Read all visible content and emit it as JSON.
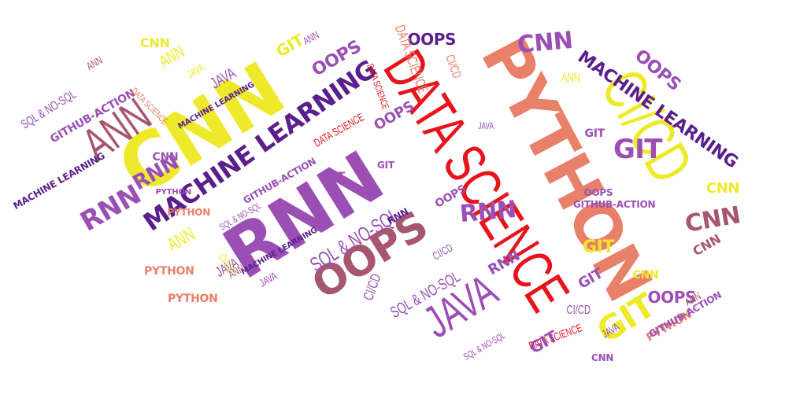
{
  "palette": {
    "yellow": "#eeea2b",
    "purple": "#9b4fb5",
    "dark_purple": "#5a1f8c",
    "red": "#e8131b",
    "salmon": "#e9806a",
    "mauve": "#a6576f"
  },
  "words": [
    {
      "text": "DATA SCIENCE",
      "color": "red",
      "style": "narrow"
    },
    {
      "text": "CNN",
      "color": "yellow",
      "style": "bold"
    },
    {
      "text": "RNN",
      "color": "purple",
      "style": "bold"
    },
    {
      "text": "PYTHON",
      "color": "salmon",
      "style": "bold"
    },
    {
      "text": "CI/CD",
      "color": "yellow",
      "style": "narrow"
    },
    {
      "text": "ANN",
      "color": "mauve",
      "style": "narrow"
    },
    {
      "text": "JAVA",
      "color": "purple",
      "style": "narrow"
    },
    {
      "text": "MACHINE LEARNING",
      "color": "dark_purple",
      "style": "bold"
    },
    {
      "text": "MACHINE LEARNING",
      "color": "dark_purple",
      "style": "bold"
    },
    {
      "text": "OOPS",
      "color": "mauve",
      "style": "bold"
    },
    {
      "text": "SQL & NO-SQL",
      "color": "purple",
      "style": "narrow"
    },
    {
      "text": "GIT",
      "color": "yellow",
      "style": "bold"
    },
    {
      "text": "GIT",
      "color": "purple",
      "style": "bold"
    },
    {
      "text": "CNN",
      "color": "purple",
      "style": "bold"
    },
    {
      "text": "CNN",
      "color": "mauve",
      "style": "bold"
    },
    {
      "text": "OOPS",
      "color": "dark_purple",
      "style": "bold"
    },
    {
      "text": "OOPS",
      "color": "purple",
      "style": "bold"
    },
    {
      "text": "RNN",
      "color": "purple",
      "style": "bold"
    },
    {
      "text": "RNN",
      "color": "purple",
      "style": "bold"
    },
    {
      "text": "ANN",
      "color": "yellow",
      "style": "narrow"
    },
    {
      "text": "ANN",
      "color": "yellow",
      "style": "narrow"
    },
    {
      "text": "GITHUB-ACTION",
      "color": "purple",
      "style": "bold"
    },
    {
      "text": "DATA SCIENCE",
      "color": "salmon",
      "style": "narrow"
    },
    {
      "text": "CI/CD",
      "color": "purple",
      "style": "narrow"
    },
    {
      "text": "CI/CD",
      "color": "salmon",
      "style": "narrow"
    },
    {
      "text": "JAVA",
      "color": "purple",
      "style": "narrow"
    },
    {
      "text": "PYTHON",
      "color": "salmon",
      "style": "bold"
    },
    {
      "text": "PYTHON",
      "color": "purple",
      "style": "bold"
    },
    {
      "text": "GIT",
      "color": "yellow",
      "style": "bold"
    },
    {
      "text": "CNN",
      "color": "yellow",
      "style": "bold"
    },
    {
      "text": "ANN",
      "color": "purple",
      "style": "narrow"
    },
    {
      "text": "SQL & NO-SQL",
      "color": "purple",
      "style": "narrow"
    },
    {
      "text": "MACHINE LEARNING",
      "color": "dark_purple",
      "style": "bold"
    },
    {
      "text": "GITHUB-ACTION",
      "color": "purple",
      "style": "bold"
    },
    {
      "text": "JAVA",
      "color": "yellow",
      "style": "narrow"
    },
    {
      "text": "RNN",
      "color": "purple",
      "style": "bold"
    },
    {
      "text": "OOPS",
      "color": "purple",
      "style": "bold"
    },
    {
      "text": "GIT",
      "color": "purple",
      "style": "bold"
    },
    {
      "text": "CNN",
      "color": "yellow",
      "style": "bold"
    },
    {
      "text": "ANN",
      "color": "mauve",
      "style": "narrow"
    },
    {
      "text": "DATA SCIENCE",
      "color": "salmon",
      "style": "narrow"
    },
    {
      "text": "DATA SCIENCE",
      "color": "red",
      "style": "narrow"
    },
    {
      "text": "RNN",
      "color": "dark_purple",
      "style": "bold"
    },
    {
      "text": "OOPS",
      "color": "purple",
      "style": "bold"
    },
    {
      "text": "JAVA",
      "color": "purple",
      "style": "narrow"
    },
    {
      "text": "CI/CD",
      "color": "yellow",
      "style": "narrow"
    },
    {
      "text": "GIT",
      "color": "purple",
      "style": "bold"
    },
    {
      "text": "GIT",
      "color": "yellow",
      "style": "bold"
    },
    {
      "text": "OOPS",
      "color": "purple",
      "style": "bold"
    },
    {
      "text": "PYTHON",
      "color": "salmon",
      "style": "bold"
    },
    {
      "text": "PYTHON",
      "color": "salmon",
      "style": "bold"
    },
    {
      "text": "SQL & NO-SQL",
      "color": "purple",
      "style": "narrow"
    },
    {
      "text": "SQL & NO-SQL",
      "color": "purple",
      "style": "narrow"
    },
    {
      "text": "DATA SCIENCE",
      "color": "red",
      "style": "narrow"
    },
    {
      "text": "JAVA",
      "color": "purple",
      "style": "narrow"
    },
    {
      "text": "CI/CD",
      "color": "purple",
      "style": "narrow"
    },
    {
      "text": "GIT",
      "color": "purple",
      "style": "bold"
    },
    {
      "text": "GITHUB-ACTION",
      "color": "purple",
      "style": "bold"
    },
    {
      "text": "ANN",
      "color": "mauve",
      "style": "narrow"
    },
    {
      "text": "CNN",
      "color": "purple",
      "style": "bold"
    },
    {
      "text": "OOPS",
      "color": "purple",
      "style": "bold"
    },
    {
      "text": "MACHINE LEARNING",
      "color": "dark_purple",
      "style": "bold"
    },
    {
      "text": "SQL & NO-SQL",
      "color": "purple",
      "style": "narrow"
    },
    {
      "text": "JAVA",
      "color": "purple",
      "style": "narrow"
    },
    {
      "text": "ANN",
      "color": "yellow",
      "style": "narrow"
    },
    {
      "text": "CI/CD",
      "color": "purple",
      "style": "narrow"
    },
    {
      "text": "PYTHON",
      "color": "salmon",
      "style": "bold"
    },
    {
      "text": "RNN",
      "color": "purple",
      "style": "bold"
    },
    {
      "text": "GITHUB-ACTION",
      "color": "purple",
      "style": "bold"
    },
    {
      "text": "CNN",
      "color": "yellow",
      "style": "bold"
    },
    {
      "text": "GIT",
      "color": "purple",
      "style": "bold"
    },
    {
      "text": "DATA SCIENCE",
      "color": "red",
      "style": "narrow"
    },
    {
      "text": "MACHINE LEARNING",
      "color": "dark_purple",
      "style": "bold"
    },
    {
      "text": "CNN",
      "color": "mauve",
      "style": "bold"
    },
    {
      "text": "OOPS",
      "color": "purple",
      "style": "bold"
    },
    {
      "text": "ANN",
      "color": "mauve",
      "style": "narrow"
    },
    {
      "text": "JAVA",
      "color": "purple",
      "style": "narrow"
    },
    {
      "text": "GIT",
      "color": "purple",
      "style": "bold"
    },
    {
      "text": "CNN",
      "color": "purple",
      "style": "bold"
    }
  ]
}
